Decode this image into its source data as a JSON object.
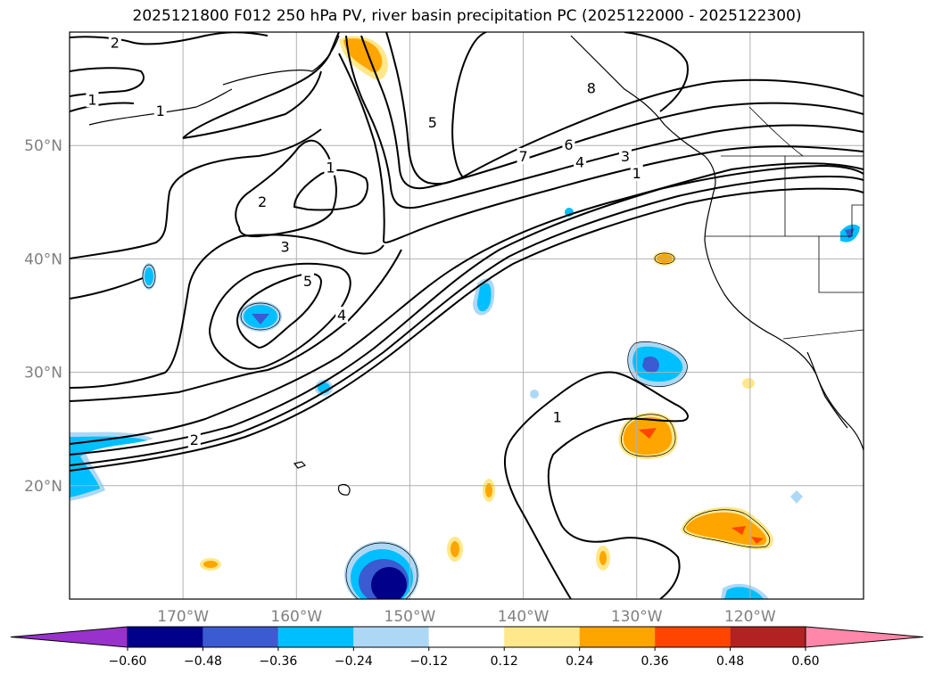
{
  "title": "2025121800 F012 250 hPa PV, river basin precipitation PC (2025122000 - 2025122300)",
  "map": {
    "lon_range": [
      -180,
      -110
    ],
    "lat_range": [
      10,
      60
    ],
    "lon_ticks": [
      {
        "value": -170,
        "label": "170°W"
      },
      {
        "value": -160,
        "label": "160°W"
      },
      {
        "value": -150,
        "label": "150°W"
      },
      {
        "value": -140,
        "label": "140°W"
      },
      {
        "value": -130,
        "label": "130°W"
      },
      {
        "value": -120,
        "label": "120°W"
      }
    ],
    "lat_ticks": [
      {
        "value": 50,
        "label": "50°N"
      },
      {
        "value": 40,
        "label": "40°N"
      },
      {
        "value": 30,
        "label": "30°N"
      },
      {
        "value": 20,
        "label": "20°N"
      }
    ],
    "grid": true
  },
  "contour_labels": [
    {
      "text": "2",
      "lon": -176,
      "lat": 59
    },
    {
      "text": "1",
      "lon": -178,
      "lat": 54
    },
    {
      "text": "1",
      "lon": -172,
      "lat": 53
    },
    {
      "text": "2",
      "lon": -163,
      "lat": 45
    },
    {
      "text": "1",
      "lon": -157,
      "lat": 48
    },
    {
      "text": "3",
      "lon": -161,
      "lat": 41
    },
    {
      "text": "5",
      "lon": -159,
      "lat": 38
    },
    {
      "text": "4",
      "lon": -156,
      "lat": 35
    },
    {
      "text": "2",
      "lon": -169,
      "lat": 24
    },
    {
      "text": "5",
      "lon": -148,
      "lat": 52
    },
    {
      "text": "7",
      "lon": -140,
      "lat": 49
    },
    {
      "text": "6",
      "lon": -136,
      "lat": 50
    },
    {
      "text": "4",
      "lon": -135,
      "lat": 48.5
    },
    {
      "text": "3",
      "lon": -131,
      "lat": 49
    },
    {
      "text": "1",
      "lon": -130,
      "lat": 47.5
    },
    {
      "text": "8",
      "lon": -134,
      "lat": 55
    },
    {
      "text": "1",
      "lon": -137,
      "lat": 26
    }
  ],
  "colorbar": {
    "ticks": [
      "-0.60",
      "-0.48",
      "-0.36",
      "-0.24",
      "-0.12",
      "0.12",
      "0.24",
      "0.36",
      "0.48",
      "0.60"
    ],
    "colors": [
      "#9932cc",
      "#00008b",
      "#3a5bd1",
      "#00bfff",
      "#add8f5",
      "#ffffff",
      "#ffe88a",
      "#ffa500",
      "#ff4500",
      "#b22222",
      "#ff88aa"
    ]
  }
}
